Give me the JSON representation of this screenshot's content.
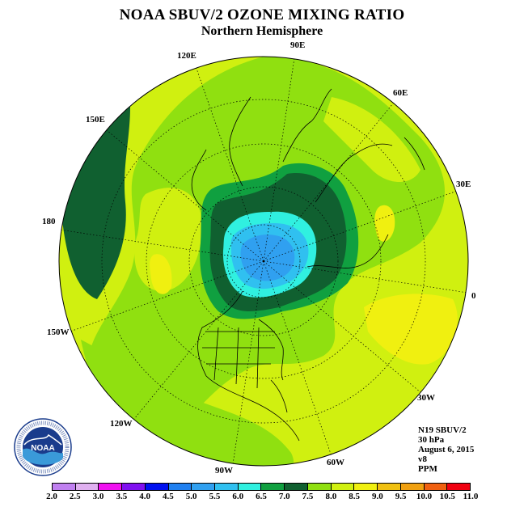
{
  "title": "NOAA SBUV/2 OZONE MIXING RATIO",
  "subtitle": "Northern Hemisphere",
  "longitude_labels": [
    {
      "id": "lon-90e",
      "text": "90E"
    },
    {
      "id": "lon-60e",
      "text": "60E"
    },
    {
      "id": "lon-30e",
      "text": "30E"
    },
    {
      "id": "lon-0",
      "text": "0"
    },
    {
      "id": "lon-30w",
      "text": "30W"
    },
    {
      "id": "lon-60w",
      "text": "60W"
    },
    {
      "id": "lon-90w",
      "text": "90W"
    },
    {
      "id": "lon-120w",
      "text": "120W"
    },
    {
      "id": "lon-150w",
      "text": "150W"
    },
    {
      "id": "lon-180",
      "text": "180"
    },
    {
      "id": "lon-150e",
      "text": "150E"
    },
    {
      "id": "lon-120e",
      "text": "120E"
    }
  ],
  "info": {
    "instrument": "N19 SBUV/2",
    "pressure": "30 hPa",
    "date": "August 6, 2015",
    "version": "v8",
    "units": "PPM"
  },
  "logo": {
    "text": "NOAA",
    "ring_text": "NATIONAL OCEANIC AND ATMOSPHERIC ADMINISTRATION · U.S. DEPARTMENT OF COMMERCE"
  },
  "colorbar": {
    "ticks": [
      "2.0",
      "2.5",
      "3.0",
      "3.5",
      "4.0",
      "4.5",
      "5.0",
      "5.5",
      "6.0",
      "6.5",
      "7.0",
      "7.5",
      "8.0",
      "8.5",
      "9.0",
      "9.5",
      "10.0",
      "10.5",
      "11.0"
    ],
    "colors": [
      "#c080f0",
      "#e0b0f0",
      "#f010f0",
      "#8010f0",
      "#0010f0",
      "#2080f0",
      "#30a0f0",
      "#30c0f0",
      "#30f0e0",
      "#10a040",
      "#106030",
      "#90e010",
      "#d0f010",
      "#f0f010",
      "#f0c010",
      "#f0a010",
      "#f06010",
      "#f00010",
      "#a06040"
    ]
  },
  "map_fills": {
    "background": "#d0f010",
    "band_7_5_to_8": "#90e010",
    "band_6_5_to_7": "#10a040",
    "band_6_to_6_5": "#106030",
    "band_5_5_to_6": "#30f0e0",
    "band_5_to_5_5": "#30c0f0",
    "band_4_5_to_5": "#30a0f0",
    "band_8_5_to_9": "#f0f010"
  }
}
